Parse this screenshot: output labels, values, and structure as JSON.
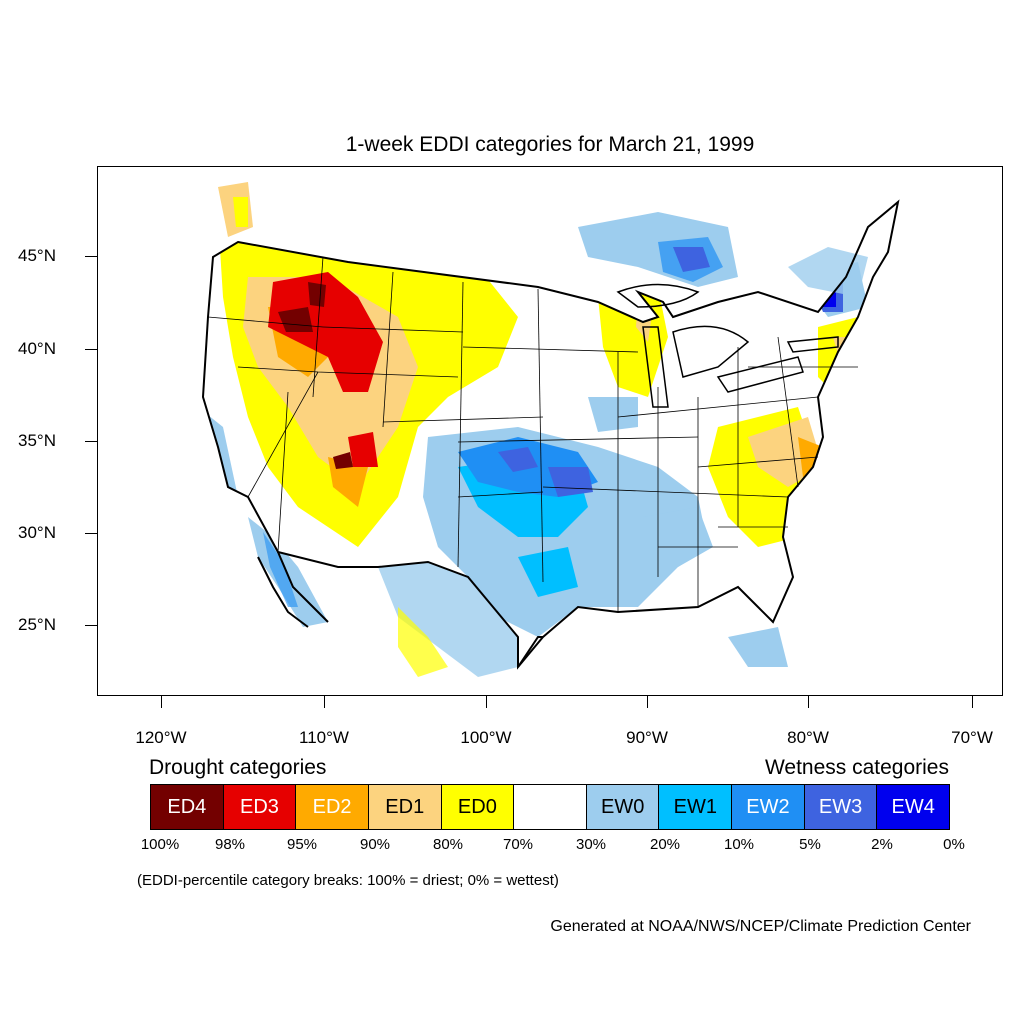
{
  "title": "1-week EDDI categories for March 21, 1999",
  "lat_labels": [
    "45°N",
    "40°N",
    "35°N",
    "30°N",
    "25°N"
  ],
  "lon_labels": [
    "120°W",
    "110°W",
    "100°W",
    "90°W",
    "80°W",
    "70°W"
  ],
  "legend": {
    "drought_heading": "Drought categories",
    "wetness_heading": "Wetness categories",
    "categories": [
      {
        "label": "ED4",
        "color": "#730000",
        "text_color": "#ffffff"
      },
      {
        "label": "ED3",
        "color": "#e60000",
        "text_color": "#ffffff"
      },
      {
        "label": "ED2",
        "color": "#ffaa00",
        "text_color": "#ffffff"
      },
      {
        "label": "ED1",
        "color": "#fcd37f",
        "text_color": "#000000"
      },
      {
        "label": "ED0",
        "color": "#ffff00",
        "text_color": "#000000"
      },
      {
        "label": "",
        "color": "#ffffff",
        "text_color": "#000000"
      },
      {
        "label": "EW0",
        "color": "#9dcdee",
        "text_color": "#000000"
      },
      {
        "label": "EW1",
        "color": "#00bfff",
        "text_color": "#000000"
      },
      {
        "label": "EW2",
        "color": "#1f8ff4",
        "text_color": "#ffffff"
      },
      {
        "label": "EW3",
        "color": "#3e63e0",
        "text_color": "#ffffff"
      },
      {
        "label": "EW4",
        "color": "#0000ee",
        "text_color": "#ffffff"
      }
    ],
    "breaks": [
      "100%",
      "98%",
      "95%",
      "90%",
      "80%",
      "70%",
      "30%",
      "20%",
      "10%",
      "5%",
      "2%",
      "0%"
    ],
    "note": "(EDDI-percentile category breaks: 100% = driest; 0% = wettest)"
  },
  "credit": "Generated at NOAA/NWS/NCEP/Climate Prediction Center"
}
